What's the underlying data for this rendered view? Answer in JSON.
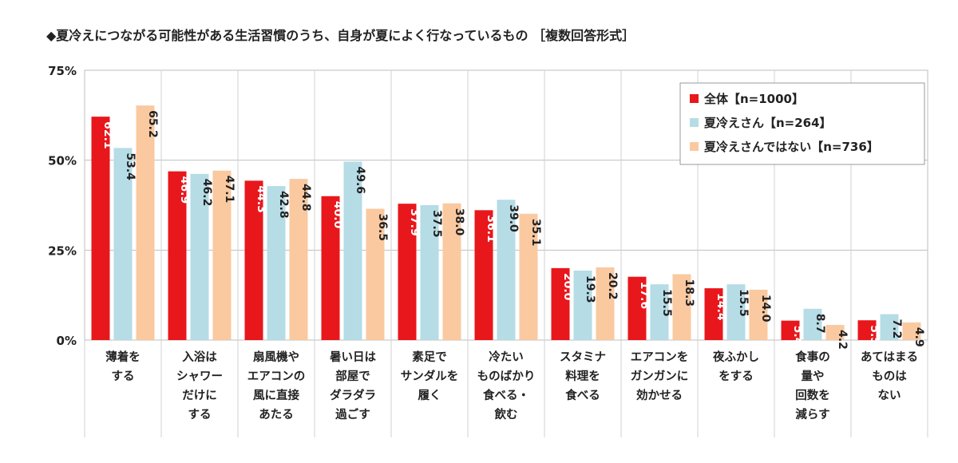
{
  "chart_data": {
    "type": "bar",
    "title": "◆夏冷えにつながる可能性がある生活習慣のうち、自身が夏によく行なっているもの ［複数回答形式］",
    "categories": [
      [
        "薄着を",
        "する"
      ],
      [
        "入浴は",
        "シャワー",
        "だけに",
        "する"
      ],
      [
        "扇風機や",
        "エアコンの",
        "風に直接",
        "あたる"
      ],
      [
        "暑い日は",
        "部屋で",
        "ダラダラ",
        "過ごす"
      ],
      [
        "素足で",
        "サンダルを",
        "履く"
      ],
      [
        "冷たい",
        "ものばかり",
        "食べる・",
        "飲む"
      ],
      [
        "スタミナ",
        "料理を",
        "食べる"
      ],
      [
        "エアコンを",
        "ガンガンに",
        "効かせる"
      ],
      [
        "夜ふかし",
        "をする"
      ],
      [
        "食事の",
        "量や",
        "回数を",
        "減らす"
      ],
      [
        "あてはまる",
        "ものは",
        "ない"
      ]
    ],
    "series": [
      {
        "name": "全体【n=1000】",
        "color": "#e8171c",
        "labelColor": "#ffffff",
        "values": [
          62.1,
          46.9,
          44.3,
          40.0,
          37.9,
          36.1,
          20.0,
          17.6,
          14.4,
          5.4,
          5.5
        ]
      },
      {
        "name": "夏冷えさん【n=264】",
        "color": "#b6dce6",
        "labelColor": "#222222",
        "values": [
          53.4,
          46.2,
          42.8,
          49.6,
          37.5,
          39.0,
          19.3,
          15.5,
          15.5,
          8.7,
          7.2
        ]
      },
      {
        "name": "夏冷えさんではない【n=736】",
        "color": "#fac9a0",
        "labelColor": "#222222",
        "values": [
          65.2,
          47.1,
          44.8,
          36.5,
          38.0,
          35.1,
          20.2,
          18.3,
          14.0,
          4.2,
          4.9
        ]
      }
    ],
    "ylim": [
      0,
      75
    ],
    "yticks": [
      0,
      25,
      50,
      75
    ],
    "ytick_labels": [
      "0%",
      "25%",
      "50%",
      "75%"
    ],
    "grid": true,
    "legend_position": "top-right"
  }
}
